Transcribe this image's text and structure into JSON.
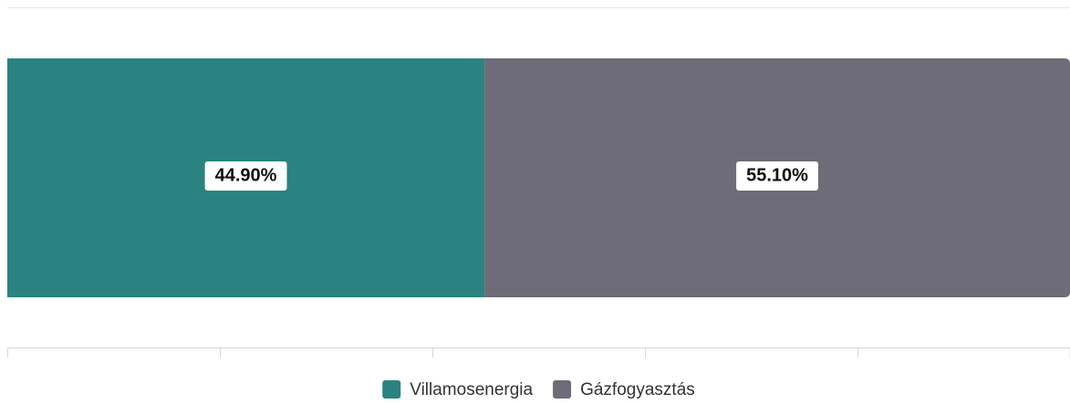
{
  "chart_data": {
    "type": "stacked-bar-horizontal",
    "series": [
      {
        "name": "Villamosenergia",
        "color": "#2a8380",
        "values": [
          44.9
        ],
        "value_labels": [
          "44.90%"
        ]
      },
      {
        "name": "Gázfogyasztás",
        "color": "#6e6c78",
        "values": [
          55.1
        ],
        "value_labels": [
          "55.10%"
        ]
      }
    ],
    "xlim": [
      0,
      100
    ],
    "xticks": [
      0,
      20,
      40,
      60,
      80,
      100
    ],
    "tick_labels": false,
    "legend": "bottom"
  }
}
